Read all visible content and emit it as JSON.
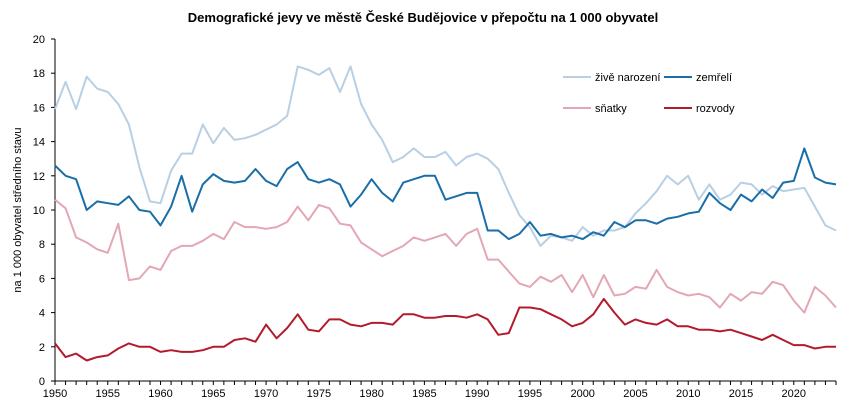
{
  "chart_data": {
    "type": "line",
    "title": "Demografické jevy ve městě České Budějovice v přepočtu na 1 000 obyvatel",
    "xlabel": "",
    "ylabel": "na 1 000 obyvatel středního stavu",
    "xlim": [
      1950,
      2024
    ],
    "ylim": [
      0,
      20
    ],
    "y_ticks": [
      "0",
      "2",
      "4",
      "6",
      "8",
      "10",
      "12",
      "14",
      "16",
      "18",
      "20"
    ],
    "x_ticks": [
      "1950",
      "1955",
      "1960",
      "1965",
      "1970",
      "1975",
      "1980",
      "1985",
      "1990",
      "1995",
      "2000",
      "2005",
      "2010",
      "2015",
      "2020"
    ],
    "legend_position": "top-right",
    "x": [
      1950,
      1951,
      1952,
      1953,
      1954,
      1955,
      1956,
      1957,
      1958,
      1959,
      1960,
      1961,
      1962,
      1963,
      1964,
      1965,
      1966,
      1967,
      1968,
      1969,
      1970,
      1971,
      1972,
      1973,
      1974,
      1975,
      1976,
      1977,
      1978,
      1979,
      1980,
      1981,
      1982,
      1983,
      1984,
      1985,
      1986,
      1987,
      1988,
      1989,
      1990,
      1991,
      1992,
      1993,
      1994,
      1995,
      1996,
      1997,
      1998,
      1999,
      2000,
      2001,
      2002,
      2003,
      2004,
      2005,
      2006,
      2007,
      2008,
      2009,
      2010,
      2011,
      2012,
      2013,
      2014,
      2015,
      2016,
      2017,
      2018,
      2019,
      2020,
      2021,
      2022,
      2023,
      2024
    ],
    "series": [
      {
        "name": "živě narození",
        "color": "#b8cfe4",
        "values": [
          15.9,
          17.5,
          15.9,
          17.8,
          17.1,
          16.9,
          16.2,
          15.0,
          12.5,
          10.5,
          10.4,
          12.3,
          13.3,
          13.3,
          15.0,
          13.9,
          14.8,
          14.1,
          14.2,
          14.4,
          14.7,
          15.0,
          15.5,
          18.4,
          18.2,
          17.9,
          18.3,
          16.9,
          18.4,
          16.2,
          15.0,
          14.1,
          12.8,
          13.1,
          13.6,
          13.1,
          13.1,
          13.4,
          12.6,
          13.1,
          13.3,
          13.0,
          12.4,
          11.0,
          9.7,
          9.0,
          7.9,
          8.5,
          8.4,
          8.2,
          9.0,
          8.5,
          8.8,
          8.8,
          9.0,
          9.8,
          10.4,
          11.1,
          12.0,
          11.5,
          12.0,
          10.6,
          11.5,
          10.6,
          10.9,
          11.6,
          11.5,
          10.9,
          11.4,
          11.1,
          11.2,
          11.3,
          10.2,
          9.1,
          8.8
        ]
      },
      {
        "name": "zemřelí",
        "color": "#1a6ea8",
        "values": [
          12.6,
          12.0,
          11.8,
          10.0,
          10.5,
          10.4,
          10.3,
          10.8,
          10.0,
          9.9,
          9.1,
          10.2,
          12.0,
          9.9,
          11.5,
          12.1,
          11.7,
          11.6,
          11.7,
          12.4,
          11.7,
          11.4,
          12.4,
          12.8,
          11.8,
          11.6,
          11.8,
          11.5,
          10.2,
          10.9,
          11.8,
          11.0,
          10.5,
          11.6,
          11.8,
          12.0,
          12.0,
          10.6,
          10.8,
          11.0,
          11.0,
          8.8,
          8.8,
          8.3,
          8.6,
          9.3,
          8.5,
          8.6,
          8.4,
          8.5,
          8.3,
          8.7,
          8.5,
          9.3,
          9.0,
          9.4,
          9.4,
          9.2,
          9.5,
          9.6,
          9.8,
          9.9,
          11.0,
          10.4,
          10.0,
          10.9,
          10.5,
          11.2,
          10.7,
          11.6,
          11.7,
          13.6,
          11.9,
          11.6,
          11.5
        ]
      },
      {
        "name": "sňatky",
        "color": "#e3a7b4",
        "values": [
          10.6,
          10.1,
          8.4,
          8.1,
          7.7,
          7.5,
          9.2,
          5.9,
          6.0,
          6.7,
          6.5,
          7.6,
          7.9,
          7.9,
          8.2,
          8.6,
          8.3,
          9.3,
          9.0,
          9.0,
          8.9,
          9.0,
          9.3,
          10.2,
          9.4,
          10.3,
          10.1,
          9.2,
          9.1,
          8.1,
          7.7,
          7.3,
          7.6,
          7.9,
          8.4,
          8.2,
          8.4,
          8.6,
          7.9,
          8.6,
          8.9,
          7.1,
          7.1,
          6.4,
          5.7,
          5.5,
          6.1,
          5.8,
          6.2,
          5.2,
          6.2,
          4.9,
          6.2,
          5.0,
          5.1,
          5.5,
          5.4,
          6.5,
          5.5,
          5.2,
          5.0,
          5.1,
          4.9,
          4.3,
          5.1,
          4.7,
          5.2,
          5.1,
          5.8,
          5.6,
          4.7,
          4.0,
          5.5,
          5.0,
          4.3
        ]
      },
      {
        "name": "rozvody",
        "color": "#b31b2c",
        "values": [
          2.2,
          1.4,
          1.6,
          1.2,
          1.4,
          1.5,
          1.9,
          2.2,
          2.0,
          2.0,
          1.7,
          1.8,
          1.7,
          1.7,
          1.8,
          2.0,
          2.0,
          2.4,
          2.5,
          2.3,
          3.3,
          2.5,
          3.1,
          3.9,
          3.0,
          2.9,
          3.6,
          3.6,
          3.3,
          3.2,
          3.4,
          3.4,
          3.3,
          3.9,
          3.9,
          3.7,
          3.7,
          3.8,
          3.8,
          3.7,
          3.9,
          3.6,
          2.7,
          2.8,
          4.3,
          4.3,
          4.2,
          3.9,
          3.6,
          3.2,
          3.4,
          3.9,
          4.8,
          4.0,
          3.3,
          3.6,
          3.4,
          3.3,
          3.6,
          3.2,
          3.2,
          3.0,
          3.0,
          2.9,
          3.0,
          2.8,
          2.6,
          2.4,
          2.7,
          2.4,
          2.1,
          2.1,
          1.9,
          2.0,
          2.0
        ]
      }
    ]
  }
}
